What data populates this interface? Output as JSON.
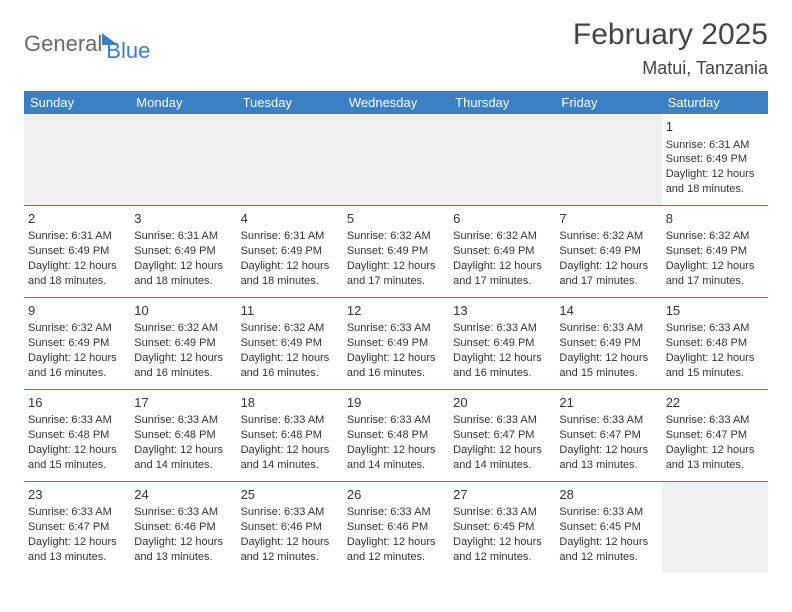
{
  "brand": {
    "part1": "General",
    "part2": "Blue"
  },
  "title": "February 2025",
  "location": "Matui, Tanzania",
  "colors": {
    "header_bg": "#3b7fc4",
    "header_text": "#ffffff",
    "cell_border": "#5a7a9a",
    "blank_bg": "#f0f0f0",
    "text": "#333333",
    "logo_gray": "#6a6a6a"
  },
  "dayHeaders": [
    "Sunday",
    "Monday",
    "Tuesday",
    "Wednesday",
    "Thursday",
    "Friday",
    "Saturday"
  ],
  "weeks": [
    [
      null,
      null,
      null,
      null,
      null,
      null,
      {
        "n": "1",
        "sr": "6:31 AM",
        "ss": "6:49 PM",
        "dl": "12 hours and 18 minutes."
      }
    ],
    [
      {
        "n": "2",
        "sr": "6:31 AM",
        "ss": "6:49 PM",
        "dl": "12 hours and 18 minutes."
      },
      {
        "n": "3",
        "sr": "6:31 AM",
        "ss": "6:49 PM",
        "dl": "12 hours and 18 minutes."
      },
      {
        "n": "4",
        "sr": "6:31 AM",
        "ss": "6:49 PM",
        "dl": "12 hours and 18 minutes."
      },
      {
        "n": "5",
        "sr": "6:32 AM",
        "ss": "6:49 PM",
        "dl": "12 hours and 17 minutes."
      },
      {
        "n": "6",
        "sr": "6:32 AM",
        "ss": "6:49 PM",
        "dl": "12 hours and 17 minutes."
      },
      {
        "n": "7",
        "sr": "6:32 AM",
        "ss": "6:49 PM",
        "dl": "12 hours and 17 minutes."
      },
      {
        "n": "8",
        "sr": "6:32 AM",
        "ss": "6:49 PM",
        "dl": "12 hours and 17 minutes."
      }
    ],
    [
      {
        "n": "9",
        "sr": "6:32 AM",
        "ss": "6:49 PM",
        "dl": "12 hours and 16 minutes."
      },
      {
        "n": "10",
        "sr": "6:32 AM",
        "ss": "6:49 PM",
        "dl": "12 hours and 16 minutes."
      },
      {
        "n": "11",
        "sr": "6:32 AM",
        "ss": "6:49 PM",
        "dl": "12 hours and 16 minutes."
      },
      {
        "n": "12",
        "sr": "6:33 AM",
        "ss": "6:49 PM",
        "dl": "12 hours and 16 minutes."
      },
      {
        "n": "13",
        "sr": "6:33 AM",
        "ss": "6:49 PM",
        "dl": "12 hours and 16 minutes."
      },
      {
        "n": "14",
        "sr": "6:33 AM",
        "ss": "6:49 PM",
        "dl": "12 hours and 15 minutes."
      },
      {
        "n": "15",
        "sr": "6:33 AM",
        "ss": "6:48 PM",
        "dl": "12 hours and 15 minutes."
      }
    ],
    [
      {
        "n": "16",
        "sr": "6:33 AM",
        "ss": "6:48 PM",
        "dl": "12 hours and 15 minutes."
      },
      {
        "n": "17",
        "sr": "6:33 AM",
        "ss": "6:48 PM",
        "dl": "12 hours and 14 minutes."
      },
      {
        "n": "18",
        "sr": "6:33 AM",
        "ss": "6:48 PM",
        "dl": "12 hours and 14 minutes."
      },
      {
        "n": "19",
        "sr": "6:33 AM",
        "ss": "6:48 PM",
        "dl": "12 hours and 14 minutes."
      },
      {
        "n": "20",
        "sr": "6:33 AM",
        "ss": "6:47 PM",
        "dl": "12 hours and 14 minutes."
      },
      {
        "n": "21",
        "sr": "6:33 AM",
        "ss": "6:47 PM",
        "dl": "12 hours and 13 minutes."
      },
      {
        "n": "22",
        "sr": "6:33 AM",
        "ss": "6:47 PM",
        "dl": "12 hours and 13 minutes."
      }
    ],
    [
      {
        "n": "23",
        "sr": "6:33 AM",
        "ss": "6:47 PM",
        "dl": "12 hours and 13 minutes."
      },
      {
        "n": "24",
        "sr": "6:33 AM",
        "ss": "6:46 PM",
        "dl": "12 hours and 13 minutes."
      },
      {
        "n": "25",
        "sr": "6:33 AM",
        "ss": "6:46 PM",
        "dl": "12 hours and 12 minutes."
      },
      {
        "n": "26",
        "sr": "6:33 AM",
        "ss": "6:46 PM",
        "dl": "12 hours and 12 minutes."
      },
      {
        "n": "27",
        "sr": "6:33 AM",
        "ss": "6:45 PM",
        "dl": "12 hours and 12 minutes."
      },
      {
        "n": "28",
        "sr": "6:33 AM",
        "ss": "6:45 PM",
        "dl": "12 hours and 12 minutes."
      },
      null
    ]
  ],
  "labels": {
    "sunrise": "Sunrise:",
    "sunset": "Sunset:",
    "daylight": "Daylight:"
  }
}
